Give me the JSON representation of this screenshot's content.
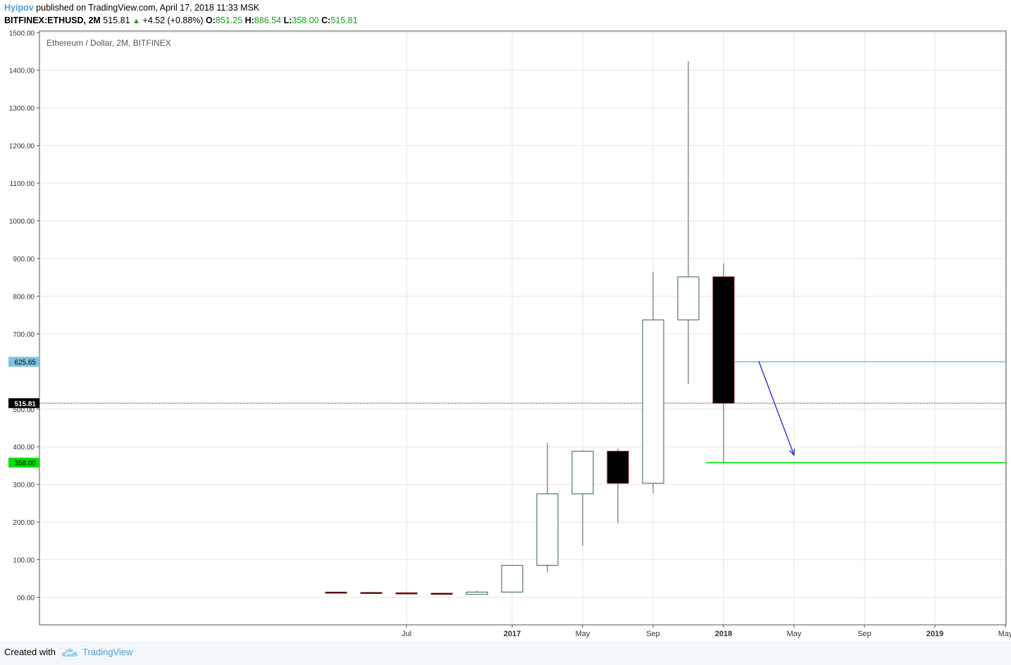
{
  "header": {
    "author": "Hyipov",
    "published_text": "published on TradingView.com, April 17, 2018 11:33 MSK"
  },
  "ohlc_line": {
    "symbol": "BITFINEX:ETHUSD, 2M",
    "last": "515.81",
    "arrow": "▲",
    "change": "+4.52 (+0.88%)",
    "o_key": "O:",
    "o": "851.25",
    "h_key": "H:",
    "h": "886.54",
    "l_key": "L:",
    "l": "358.00",
    "c_key": "C:",
    "c": "515.81"
  },
  "footer": {
    "created_with": "Created with",
    "brand": "TradingView",
    "brand_icon": "tradingview-cloud-icon"
  },
  "colors": {
    "up_body": "#ffffff",
    "down_body": "#000000",
    "candle_border": "#2f5f5a",
    "wick": "#555555",
    "line_625": "#7ec3dc",
    "line_358": "#00e000",
    "arrow": "#2222cc",
    "grid": "#e6e6e6"
  },
  "chart_data": {
    "type": "candlestick",
    "title": "Ethereum / Dollar, 2M, BITFINEX",
    "ylim": [
      -75,
      1500
    ],
    "y_ticks": [
      {
        "v": 1500,
        "label": "1500.00"
      },
      {
        "v": 1400,
        "label": "1400.00"
      },
      {
        "v": 1300,
        "label": "1300.00"
      },
      {
        "v": 1200,
        "label": "1200.00"
      },
      {
        "v": 1100,
        "label": "1100.00"
      },
      {
        "v": 1000,
        "label": "1000.00"
      },
      {
        "v": 900,
        "label": "900.00"
      },
      {
        "v": 800,
        "label": "800.00"
      },
      {
        "v": 700,
        "label": "700.00"
      },
      {
        "v": 500,
        "label": "500.00"
      },
      {
        "v": 400,
        "label": "400.00"
      },
      {
        "v": 300,
        "label": "300.00"
      },
      {
        "v": 200,
        "label": "200.00"
      },
      {
        "v": 100,
        "label": "100.00"
      },
      {
        "v": 0,
        "label": "00.00"
      }
    ],
    "x_ticks": [
      {
        "i": 1,
        "label": "Jul",
        "bold": false
      },
      {
        "i": 4,
        "label": "2017",
        "bold": true
      },
      {
        "i": 6,
        "label": "May",
        "bold": false
      },
      {
        "i": 8,
        "label": "Sep",
        "bold": false
      },
      {
        "i": 10,
        "label": "2018",
        "bold": true
      },
      {
        "i": 12,
        "label": "May",
        "bold": false
      },
      {
        "i": 14,
        "label": "Sep",
        "bold": false
      },
      {
        "i": 16,
        "label": "2019",
        "bold": true
      },
      {
        "i": 18,
        "label": "May",
        "bold": false
      }
    ],
    "x_index_range": [
      -6.7,
      20.5
    ],
    "candles": [
      {
        "i": -1,
        "o": 14,
        "h": 15,
        "l": 13,
        "c": 13
      },
      {
        "i": 0,
        "o": 13,
        "h": 14,
        "l": 11,
        "c": 12
      },
      {
        "i": 1,
        "o": 12,
        "h": 14,
        "l": 10,
        "c": 11
      },
      {
        "i": 2,
        "o": 11,
        "h": 12,
        "l": 7,
        "c": 8
      },
      {
        "i": 3,
        "o": 8,
        "h": 17,
        "l": 7,
        "c": 14
      },
      {
        "i": 4,
        "o": 14,
        "h": 85,
        "l": 13,
        "c": 85
      },
      {
        "i": 5,
        "o": 85,
        "h": 410,
        "l": 68,
        "c": 275
      },
      {
        "i": 6,
        "o": 275,
        "h": 390,
        "l": 137,
        "c": 388
      },
      {
        "i": 7,
        "o": 388,
        "h": 395,
        "l": 197,
        "c": 303
      },
      {
        "i": 8,
        "o": 303,
        "h": 865,
        "l": 277,
        "c": 737
      },
      {
        "i": 9,
        "o": 737,
        "h": 1424,
        "l": 567,
        "c": 851.25
      },
      {
        "i": 10,
        "o": 851.25,
        "h": 886.54,
        "l": 358.0,
        "c": 515.81
      }
    ],
    "last_price": {
      "value": 515.81,
      "label": "515.81"
    },
    "hlines": [
      {
        "value": 625.65,
        "label": "625.65",
        "from_i": 10,
        "color_key": "line_625"
      },
      {
        "value": 358.0,
        "label": "358.00",
        "from_i": 9.5,
        "color_key": "line_358"
      }
    ],
    "arrow": {
      "from": {
        "i": 11,
        "v": 627
      },
      "to": {
        "i": 12,
        "v": 378
      }
    },
    "grid": true
  }
}
